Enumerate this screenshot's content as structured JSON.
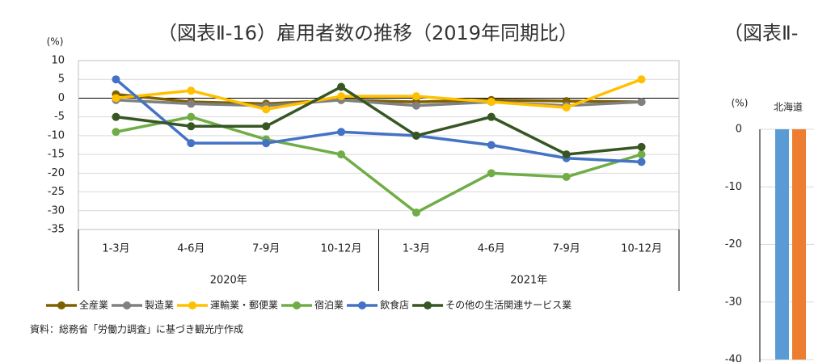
{
  "chart_data": [
    {
      "type": "line",
      "title": "（図表Ⅱ-16）雇用者数の推移（2019年同期比）",
      "y_unit": "(%)",
      "categories": [
        "1-3月",
        "4-6月",
        "7-9月",
        "10-12月",
        "1-3月",
        "4-6月",
        "7-9月",
        "10-12月"
      ],
      "groups": [
        "2020年",
        "2021年"
      ],
      "ylim": [
        -35,
        10
      ],
      "yticks": [
        10,
        5,
        0,
        -5,
        -10,
        -15,
        -20,
        -25,
        -30,
        -35
      ],
      "grid": true,
      "series": [
        {
          "name": "全産業",
          "color": "#7f6000",
          "values": [
            1,
            -1,
            -1.5,
            -0.5,
            -1,
            -0.5,
            -0.8,
            -1
          ]
        },
        {
          "name": "製造業",
          "color": "#808080",
          "values": [
            -0.5,
            -1.5,
            -2,
            -0.5,
            -2,
            -1,
            -2,
            -1
          ]
        },
        {
          "name": "運輸業・郵便業",
          "color": "#ffc000",
          "values": [
            0,
            2,
            -3,
            0.5,
            0.5,
            -1,
            -2.5,
            5
          ]
        },
        {
          "name": "宿泊業",
          "color": "#70ad47",
          "values": [
            -9,
            -5,
            -11,
            -15,
            -30.5,
            -20,
            -21,
            -15
          ]
        },
        {
          "name": "飲食店",
          "color": "#4472c4",
          "values": [
            5,
            -12,
            -12,
            -9,
            -10,
            -12.5,
            -16,
            -17
          ]
        },
        {
          "name": "その他の生活関連サービス業",
          "color": "#375623",
          "values": [
            -5,
            -7.5,
            -7.5,
            3,
            -10,
            -5,
            -15,
            -13
          ]
        }
      ],
      "source": "資料：総務省「労働力調査」に基づき観光庁作成"
    },
    {
      "type": "bar",
      "title": "（図表Ⅱ-",
      "y_unit": "(%)",
      "categories": [
        "北海道"
      ],
      "ylim": [
        -40,
        0
      ],
      "yticks": [
        0,
        -10,
        -20,
        -30,
        -40
      ],
      "grid": true,
      "series": [
        {
          "color": "#5b9bd5",
          "values": [
            -40
          ]
        },
        {
          "color": "#ed7d31",
          "values": [
            -40
          ]
        }
      ]
    }
  ]
}
